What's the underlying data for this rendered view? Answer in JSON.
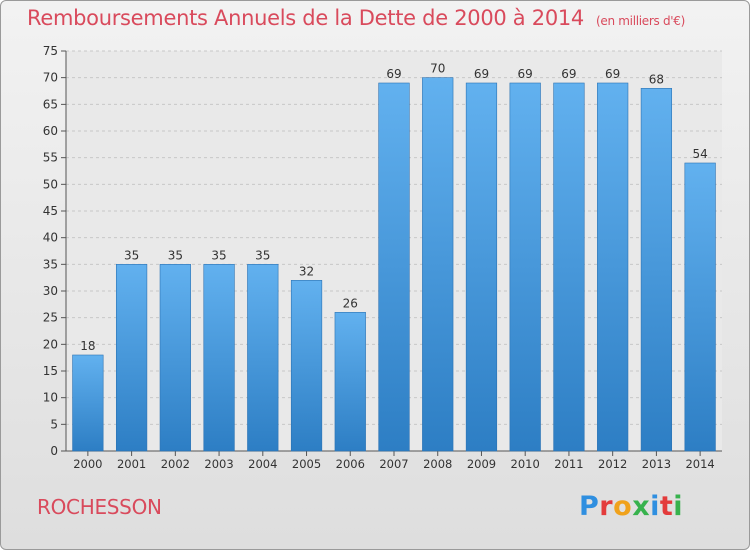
{
  "chart_data": {
    "type": "bar",
    "title": "Remboursements Annuels de la Dette de 2000 à 2014",
    "subtitle": "(en milliers d'€)",
    "categories": [
      "2000",
      "2001",
      "2002",
      "2003",
      "2004",
      "2005",
      "2006",
      "2007",
      "2008",
      "2009",
      "2010",
      "2011",
      "2012",
      "2013",
      "2014"
    ],
    "values": [
      18,
      35,
      35,
      35,
      35,
      32,
      26,
      69,
      70,
      69,
      69,
      69,
      69,
      68,
      54
    ],
    "ylim": [
      0,
      75
    ],
    "yticks": [
      0,
      5,
      10,
      15,
      20,
      25,
      30,
      35,
      40,
      45,
      50,
      55,
      60,
      65,
      70,
      75
    ],
    "grid": true,
    "data_labels": true,
    "colors": {
      "bar_top": "#62b1ef",
      "bar_bottom": "#2d7ec4",
      "title": "#d94a5c"
    }
  },
  "footer": {
    "commune": "ROCHESSON",
    "brand": "Proxiti",
    "brand_colors": [
      "#2f8fe0",
      "#e33b3b",
      "#f0a21c",
      "#37b24d",
      "#2f8fe0",
      "#e33b3b",
      "#37b24d"
    ]
  }
}
